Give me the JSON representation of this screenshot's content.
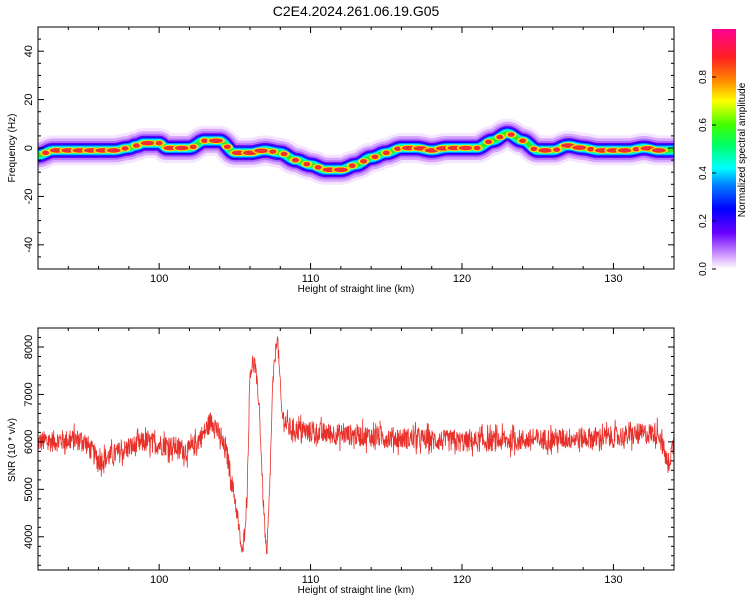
{
  "title": "C2E4.2024.261.06.19.G05",
  "chart_data": [
    {
      "type": "heatmap",
      "xlabel": "Height of straight line (km)",
      "ylabel": "Frequency (Hz)",
      "xlim": [
        92,
        134
      ],
      "ylim": [
        -50,
        50
      ],
      "xticks": [
        100,
        110,
        120,
        130
      ],
      "yticks": [
        -40,
        -20,
        0,
        20,
        40
      ],
      "colorbar": {
        "label": "Normalized spectral amplitude",
        "range": [
          0,
          1
        ],
        "ticks": [
          0.0,
          0.2,
          0.4,
          0.6,
          0.8
        ]
      },
      "ridge": [
        {
          "x": 92,
          "y": -3
        },
        {
          "x": 93,
          "y": -1
        },
        {
          "x": 94,
          "y": -1
        },
        {
          "x": 95,
          "y": -1
        },
        {
          "x": 96,
          "y": -1
        },
        {
          "x": 97,
          "y": -1
        },
        {
          "x": 98,
          "y": 0
        },
        {
          "x": 98.5,
          "y": 1
        },
        {
          "x": 99,
          "y": 2
        },
        {
          "x": 100,
          "y": 2
        },
        {
          "x": 100.5,
          "y": 0
        },
        {
          "x": 101,
          "y": 0
        },
        {
          "x": 102,
          "y": 0
        },
        {
          "x": 103,
          "y": 3
        },
        {
          "x": 104,
          "y": 3
        },
        {
          "x": 105,
          "y": -2
        },
        {
          "x": 106,
          "y": -2
        },
        {
          "x": 107,
          "y": -1
        },
        {
          "x": 108,
          "y": -2
        },
        {
          "x": 109,
          "y": -5
        },
        {
          "x": 110,
          "y": -7
        },
        {
          "x": 111,
          "y": -9
        },
        {
          "x": 112,
          "y": -9
        },
        {
          "x": 113,
          "y": -7
        },
        {
          "x": 114,
          "y": -4
        },
        {
          "x": 115,
          "y": -2
        },
        {
          "x": 116,
          "y": 0
        },
        {
          "x": 117,
          "y": 0
        },
        {
          "x": 118,
          "y": -1
        },
        {
          "x": 119,
          "y": 0
        },
        {
          "x": 120,
          "y": 0
        },
        {
          "x": 121,
          "y": 0
        },
        {
          "x": 122,
          "y": 3
        },
        {
          "x": 123,
          "y": 6
        },
        {
          "x": 124,
          "y": 3
        },
        {
          "x": 125,
          "y": -1
        },
        {
          "x": 126,
          "y": -1
        },
        {
          "x": 127,
          "y": 1
        },
        {
          "x": 128,
          "y": 0
        },
        {
          "x": 129,
          "y": -1
        },
        {
          "x": 130,
          "y": -1
        },
        {
          "x": 131,
          "y": -1
        },
        {
          "x": 132,
          "y": 0
        },
        {
          "x": 133,
          "y": -1
        },
        {
          "x": 134,
          "y": -1
        }
      ]
    },
    {
      "type": "line",
      "xlabel": "Height of straight line (km)",
      "ylabel": "SNR (10 * v/v)",
      "xlim": [
        92,
        134
      ],
      "ylim": [
        3300,
        8400
      ],
      "xticks": [
        100,
        110,
        120,
        130
      ],
      "yticks": [
        4000,
        5000,
        6000,
        7000,
        8000
      ],
      "series": [
        {
          "color": "#e8302a",
          "baseline": 6050,
          "points": [
            {
              "x": 92,
              "y": 6000
            },
            {
              "x": 95,
              "y": 6050
            },
            {
              "x": 96,
              "y": 5600
            },
            {
              "x": 99,
              "y": 6000
            },
            {
              "x": 101,
              "y": 5900
            },
            {
              "x": 102,
              "y": 5800
            },
            {
              "x": 103,
              "y": 6200
            },
            {
              "x": 103.5,
              "y": 6500
            },
            {
              "x": 104,
              "y": 6100
            },
            {
              "x": 104.5,
              "y": 5700
            },
            {
              "x": 105,
              "y": 4800
            },
            {
              "x": 105.5,
              "y": 3600
            },
            {
              "x": 105.8,
              "y": 4800
            },
            {
              "x": 106,
              "y": 7500
            },
            {
              "x": 106.3,
              "y": 7700
            },
            {
              "x": 106.6,
              "y": 6800
            },
            {
              "x": 106.9,
              "y": 4600
            },
            {
              "x": 107.1,
              "y": 3500
            },
            {
              "x": 107.3,
              "y": 5000
            },
            {
              "x": 107.5,
              "y": 7200
            },
            {
              "x": 107.8,
              "y": 8300
            },
            {
              "x": 108.1,
              "y": 6600
            },
            {
              "x": 108.5,
              "y": 6300
            },
            {
              "x": 110,
              "y": 6200
            },
            {
              "x": 115,
              "y": 6100
            },
            {
              "x": 120,
              "y": 6000
            },
            {
              "x": 125,
              "y": 6050
            },
            {
              "x": 130,
              "y": 6100
            },
            {
              "x": 133,
              "y": 6200
            },
            {
              "x": 133.6,
              "y": 5500
            },
            {
              "x": 134,
              "y": 6000
            }
          ]
        }
      ]
    }
  ]
}
